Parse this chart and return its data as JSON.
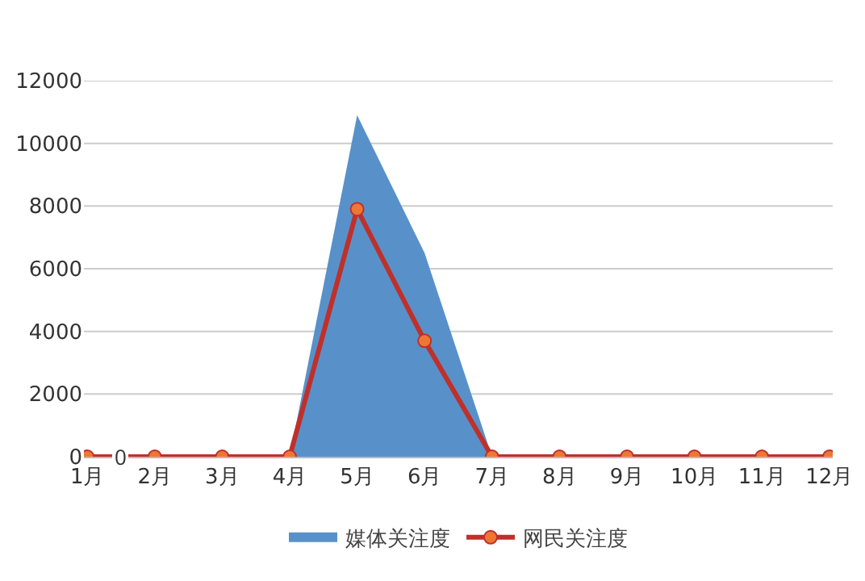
{
  "chart_data": {
    "type": "area",
    "categories": [
      "1月",
      "2月",
      "3月",
      "4月",
      "5月",
      "6月",
      "7月",
      "8月",
      "9月",
      "10月",
      "11月",
      "12月"
    ],
    "series": [
      {
        "name": "媒体关注度",
        "color": "#5891c9",
        "values": [
          0,
          0,
          0,
          0,
          10900,
          6500,
          0,
          0,
          0,
          0,
          0,
          0
        ]
      },
      {
        "name": "网民关注度",
        "type": "line",
        "color": "#c0302b",
        "marker": "circle",
        "values": [
          0,
          0,
          0,
          0,
          7900,
          3700,
          0,
          0,
          0,
          0,
          0,
          0
        ]
      }
    ],
    "ylim": [
      0,
      12000
    ],
    "yticks": [
      0,
      2000,
      4000,
      6000,
      8000,
      10000,
      12000
    ],
    "grid": "y",
    "legend": "bottom",
    "annotations": [
      {
        "text": "0",
        "x": "1月",
        "y": 0
      }
    ]
  }
}
